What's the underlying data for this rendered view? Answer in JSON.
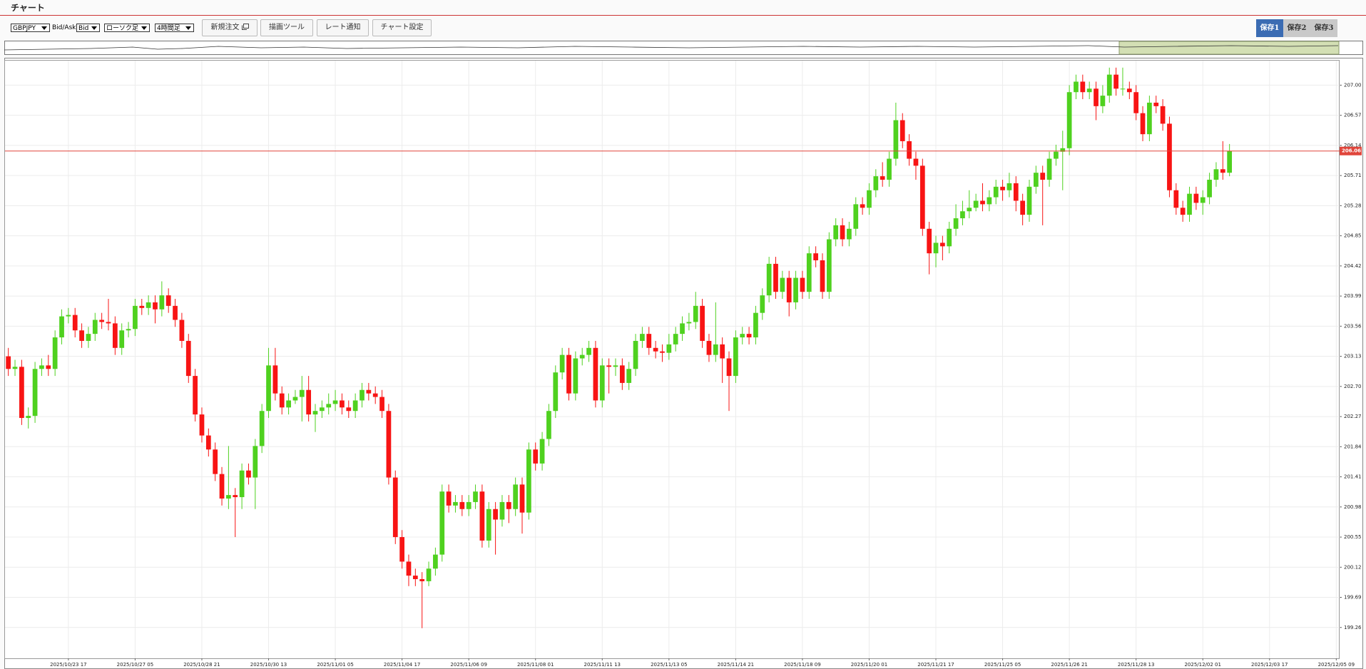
{
  "header": {
    "title": "チャート"
  },
  "toolbar": {
    "symbol": "GBPJPY",
    "bid_ask_label": "Bid/Ask",
    "price_type": "Bid",
    "chart_style": "ローソク足",
    "timeframe": "4時間足",
    "buttons": [
      "新規注文",
      "描画ツール",
      "レート通知",
      "チャート設定"
    ],
    "saves": [
      "保存1",
      "保存2",
      "保存3"
    ]
  },
  "chart_data": {
    "type": "candlestick",
    "categories": [
      null,
      null,
      null,
      null,
      null,
      null,
      null,
      null,
      null,
      "2025/10/23 17",
      null,
      null,
      null,
      null,
      null,
      null,
      null,
      null,
      null,
      "2025/10/27 05",
      null,
      null,
      null,
      null,
      null,
      null,
      null,
      null,
      null,
      "2025/10/28 21",
      null,
      null,
      null,
      null,
      null,
      null,
      null,
      null,
      null,
      "2025/10/30 13",
      null,
      null,
      null,
      null,
      null,
      null,
      null,
      null,
      null,
      "2025/11/01 05",
      null,
      null,
      null,
      null,
      null,
      null,
      null,
      null,
      null,
      "2025/11/04 17",
      null,
      null,
      null,
      null,
      null,
      null,
      null,
      null,
      null,
      "2025/11/06 09",
      null,
      null,
      null,
      null,
      null,
      null,
      null,
      null,
      null,
      "2025/11/08 01",
      null,
      null,
      null,
      null,
      null,
      null,
      null,
      null,
      null,
      "2025/11/11 13",
      null,
      null,
      null,
      null,
      null,
      null,
      null,
      null,
      null,
      "2025/11/13 05",
      null,
      null,
      null,
      null,
      null,
      null,
      null,
      null,
      null,
      "2025/11/14 21",
      null,
      null,
      null,
      null,
      null,
      null,
      null,
      null,
      null,
      "2025/11/18 09",
      null,
      null,
      null,
      null,
      null,
      null,
      null,
      null,
      null,
      "2025/11/20 01",
      null,
      null,
      null,
      null,
      null,
      null,
      null,
      null,
      null,
      "2025/11/21 17",
      null,
      null,
      null,
      null,
      null,
      null,
      null,
      null,
      null,
      "2025/11/25 05",
      null,
      null,
      null,
      null,
      null,
      null,
      null,
      null,
      null,
      "2025/11/26 21",
      null,
      null,
      null,
      null,
      null,
      null,
      null,
      null,
      null,
      "2025/11/28 13",
      null,
      null,
      null,
      null,
      null,
      null,
      null,
      null,
      null,
      "2025/12/02 01",
      null,
      null,
      null,
      null,
      null,
      null,
      null,
      null,
      null,
      "2025/12/03 17",
      null,
      null,
      null,
      null,
      null,
      null,
      null,
      null,
      null,
      "2025/12/05 09"
    ],
    "candles": [
      [
        203.13,
        203.25,
        202.85,
        202.95
      ],
      [
        202.95,
        203.08,
        202.85,
        202.98
      ],
      [
        202.98,
        203.08,
        202.15,
        202.25
      ],
      [
        202.25,
        202.4,
        202.1,
        202.28
      ],
      [
        202.28,
        203.05,
        202.18,
        202.95
      ],
      [
        202.95,
        203.1,
        202.85,
        203.0
      ],
      [
        203.0,
        203.15,
        202.85,
        202.95
      ],
      [
        202.95,
        203.5,
        202.85,
        203.4
      ],
      [
        203.4,
        203.8,
        203.3,
        203.7
      ],
      [
        203.7,
        203.82,
        203.6,
        203.72
      ],
      [
        203.72,
        203.82,
        203.4,
        203.5
      ],
      [
        203.5,
        203.6,
        203.25,
        203.35
      ],
      [
        203.35,
        203.55,
        203.25,
        203.45
      ],
      [
        203.45,
        203.75,
        203.35,
        203.65
      ],
      [
        203.65,
        203.75,
        203.52,
        203.62
      ],
      [
        203.62,
        203.95,
        203.5,
        203.6
      ],
      [
        203.6,
        203.7,
        203.15,
        203.25
      ],
      [
        203.25,
        203.6,
        203.15,
        203.5
      ],
      [
        203.5,
        203.62,
        203.4,
        203.52
      ],
      [
        203.52,
        203.95,
        203.42,
        203.85
      ],
      [
        203.85,
        203.95,
        203.72,
        203.82
      ],
      [
        203.82,
        204.0,
        203.72,
        203.9
      ],
      [
        203.9,
        204.0,
        203.6,
        203.8
      ],
      [
        203.8,
        204.2,
        203.7,
        204.0
      ],
      [
        204.0,
        204.1,
        203.75,
        203.85
      ],
      [
        203.85,
        203.95,
        203.55,
        203.65
      ],
      [
        203.65,
        203.75,
        203.25,
        203.35
      ],
      [
        203.35,
        203.45,
        202.75,
        202.85
      ],
      [
        202.85,
        202.95,
        202.2,
        202.3
      ],
      [
        202.3,
        202.4,
        201.9,
        202.0
      ],
      [
        202.0,
        202.1,
        201.7,
        201.8
      ],
      [
        201.8,
        201.9,
        201.35,
        201.45
      ],
      [
        201.45,
        201.55,
        201.0,
        201.1
      ],
      [
        201.1,
        201.85,
        200.95,
        201.15
      ],
      [
        201.15,
        201.25,
        200.55,
        201.12
      ],
      [
        201.12,
        201.6,
        200.95,
        201.5
      ],
      [
        201.5,
        201.6,
        201.3,
        201.4
      ],
      [
        201.4,
        201.95,
        200.95,
        201.85
      ],
      [
        201.85,
        202.45,
        201.75,
        202.35
      ],
      [
        202.35,
        203.25,
        202.25,
        203.0
      ],
      [
        203.0,
        203.25,
        202.5,
        202.6
      ],
      [
        202.6,
        202.7,
        202.3,
        202.4
      ],
      [
        202.4,
        202.6,
        202.3,
        202.5
      ],
      [
        202.5,
        202.65,
        202.45,
        202.55
      ],
      [
        202.55,
        202.85,
        202.2,
        202.65
      ],
      [
        202.65,
        202.85,
        202.2,
        202.3
      ],
      [
        202.3,
        202.45,
        202.05,
        202.35
      ],
      [
        202.35,
        202.5,
        202.25,
        202.4
      ],
      [
        202.4,
        202.6,
        202.3,
        202.45
      ],
      [
        202.45,
        202.65,
        202.35,
        202.5
      ],
      [
        202.5,
        202.6,
        202.3,
        202.4
      ],
      [
        202.4,
        202.5,
        202.25,
        202.35
      ],
      [
        202.35,
        202.6,
        202.25,
        202.5
      ],
      [
        202.5,
        202.75,
        202.4,
        202.65
      ],
      [
        202.65,
        202.75,
        202.5,
        202.6
      ],
      [
        202.6,
        202.7,
        202.45,
        202.55
      ],
      [
        202.55,
        202.65,
        202.25,
        202.35
      ],
      [
        202.35,
        202.45,
        201.3,
        201.4
      ],
      [
        201.4,
        201.5,
        200.45,
        200.55
      ],
      [
        200.55,
        200.65,
        200.1,
        200.2
      ],
      [
        200.2,
        200.3,
        199.85,
        200.0
      ],
      [
        200.0,
        200.1,
        199.85,
        199.95
      ],
      [
        199.95,
        200.05,
        199.25,
        199.92
      ],
      [
        199.92,
        200.2,
        199.85,
        200.1
      ],
      [
        200.1,
        200.4,
        200.0,
        200.3
      ],
      [
        200.3,
        201.3,
        200.2,
        201.2
      ],
      [
        201.2,
        201.3,
        200.9,
        201.0
      ],
      [
        201.0,
        201.15,
        200.9,
        201.05
      ],
      [
        201.05,
        201.15,
        200.85,
        200.95
      ],
      [
        200.95,
        201.15,
        200.85,
        201.05
      ],
      [
        201.05,
        201.3,
        200.95,
        201.2
      ],
      [
        201.2,
        201.3,
        200.4,
        200.5
      ],
      [
        200.5,
        201.05,
        200.4,
        200.95
      ],
      [
        200.95,
        201.05,
        200.3,
        200.8
      ],
      [
        200.8,
        201.15,
        200.7,
        201.05
      ],
      [
        201.05,
        201.15,
        200.75,
        200.95
      ],
      [
        200.95,
        201.4,
        200.85,
        201.3
      ],
      [
        201.3,
        201.4,
        200.6,
        200.9
      ],
      [
        200.9,
        201.9,
        200.8,
        201.8
      ],
      [
        201.8,
        201.9,
        201.5,
        201.6
      ],
      [
        201.6,
        202.05,
        201.5,
        201.95
      ],
      [
        201.95,
        202.45,
        201.85,
        202.35
      ],
      [
        202.35,
        203.0,
        202.25,
        202.9
      ],
      [
        202.9,
        203.25,
        202.8,
        203.15
      ],
      [
        203.15,
        203.25,
        202.5,
        202.6
      ],
      [
        202.6,
        203.2,
        202.5,
        203.1
      ],
      [
        203.1,
        203.25,
        203.0,
        203.15
      ],
      [
        203.15,
        203.35,
        203.05,
        203.25
      ],
      [
        203.25,
        203.35,
        202.4,
        202.5
      ],
      [
        202.5,
        203.1,
        202.4,
        203.0
      ],
      [
        203.0,
        203.1,
        202.6,
        202.98
      ],
      [
        202.98,
        203.1,
        202.85,
        203.0
      ],
      [
        203.0,
        203.1,
        202.65,
        202.75
      ],
      [
        202.75,
        203.05,
        202.65,
        202.95
      ],
      [
        202.95,
        203.45,
        202.85,
        203.35
      ],
      [
        203.35,
        203.55,
        203.25,
        203.45
      ],
      [
        203.45,
        203.55,
        203.15,
        203.25
      ],
      [
        203.25,
        203.35,
        203.1,
        203.2
      ],
      [
        203.2,
        203.3,
        203.05,
        203.18
      ],
      [
        203.18,
        203.45,
        203.08,
        203.3
      ],
      [
        203.3,
        203.55,
        203.2,
        203.45
      ],
      [
        203.45,
        203.7,
        203.35,
        203.6
      ],
      [
        203.6,
        203.75,
        203.5,
        203.62
      ],
      [
        203.62,
        204.05,
        203.52,
        203.85
      ],
      [
        203.85,
        203.95,
        203.25,
        203.35
      ],
      [
        203.35,
        203.45,
        203.05,
        203.15
      ],
      [
        203.15,
        203.9,
        203.05,
        203.3
      ],
      [
        203.3,
        203.4,
        202.75,
        203.1
      ],
      [
        203.1,
        203.2,
        202.35,
        202.85
      ],
      [
        202.85,
        203.5,
        202.75,
        203.4
      ],
      [
        203.4,
        203.55,
        203.3,
        203.45
      ],
      [
        203.45,
        203.55,
        203.3,
        203.4
      ],
      [
        203.4,
        203.85,
        203.3,
        203.75
      ],
      [
        203.75,
        204.1,
        203.65,
        204.0
      ],
      [
        204.0,
        204.55,
        203.9,
        204.45
      ],
      [
        204.45,
        204.55,
        203.95,
        204.05
      ],
      [
        204.05,
        204.35,
        203.95,
        204.25
      ],
      [
        204.25,
        204.35,
        203.7,
        203.9
      ],
      [
        203.9,
        204.35,
        203.8,
        204.25
      ],
      [
        204.25,
        204.35,
        203.95,
        204.05
      ],
      [
        204.05,
        204.7,
        203.95,
        204.6
      ],
      [
        204.6,
        204.7,
        204.4,
        204.5
      ],
      [
        204.5,
        204.6,
        203.95,
        204.05
      ],
      [
        204.05,
        204.9,
        203.95,
        204.8
      ],
      [
        204.8,
        205.1,
        204.7,
        205.0
      ],
      [
        205.0,
        205.1,
        204.7,
        204.8
      ],
      [
        204.8,
        205.05,
        204.7,
        204.95
      ],
      [
        204.95,
        205.4,
        204.85,
        205.3
      ],
      [
        205.3,
        205.4,
        205.15,
        205.25
      ],
      [
        205.25,
        205.6,
        205.15,
        205.5
      ],
      [
        205.5,
        205.8,
        205.4,
        205.7
      ],
      [
        205.7,
        205.9,
        205.55,
        205.65
      ],
      [
        205.65,
        206.05,
        205.55,
        205.95
      ],
      [
        205.95,
        206.75,
        205.85,
        206.5
      ],
      [
        206.5,
        206.6,
        206.1,
        206.2
      ],
      [
        206.2,
        206.3,
        205.85,
        205.95
      ],
      [
        205.95,
        206.05,
        205.65,
        205.85
      ],
      [
        205.85,
        205.95,
        204.85,
        204.95
      ],
      [
        204.95,
        205.05,
        204.3,
        204.6
      ],
      [
        204.6,
        204.85,
        204.4,
        204.75
      ],
      [
        204.75,
        204.85,
        204.5,
        204.7
      ],
      [
        204.7,
        205.05,
        204.6,
        204.95
      ],
      [
        204.95,
        205.3,
        204.85,
        205.1
      ],
      [
        205.1,
        205.35,
        205.0,
        205.2
      ],
      [
        205.2,
        205.5,
        205.1,
        205.25
      ],
      [
        205.25,
        205.45,
        205.2,
        205.35
      ],
      [
        205.35,
        205.6,
        205.2,
        205.3
      ],
      [
        205.3,
        205.5,
        205.2,
        205.4
      ],
      [
        205.4,
        205.65,
        205.3,
        205.55
      ],
      [
        205.55,
        205.65,
        205.35,
        205.5
      ],
      [
        205.5,
        205.75,
        205.4,
        205.6
      ],
      [
        205.6,
        205.7,
        205.2,
        205.35
      ],
      [
        205.35,
        205.45,
        205.0,
        205.15
      ],
      [
        205.15,
        205.65,
        205.05,
        205.55
      ],
      [
        205.55,
        205.85,
        205.45,
        205.75
      ],
      [
        205.75,
        205.85,
        205.0,
        205.65
      ],
      [
        205.65,
        206.05,
        205.55,
        205.95
      ],
      [
        205.95,
        206.15,
        205.85,
        206.05
      ],
      [
        206.05,
        206.35,
        205.5,
        206.1
      ],
      [
        206.1,
        207.0,
        206.0,
        206.9
      ],
      [
        206.9,
        207.15,
        206.8,
        207.05
      ],
      [
        207.05,
        207.15,
        206.8,
        206.9
      ],
      [
        206.9,
        207.05,
        206.8,
        206.95
      ],
      [
        206.95,
        207.05,
        206.5,
        206.7
      ],
      [
        206.7,
        207.0,
        206.6,
        206.85
      ],
      [
        206.85,
        207.25,
        206.75,
        207.15
      ],
      [
        207.15,
        207.25,
        206.85,
        206.95
      ],
      [
        206.95,
        207.25,
        206.85,
        206.95
      ],
      [
        206.95,
        207.05,
        206.8,
        206.9
      ],
      [
        206.9,
        207.0,
        206.5,
        206.6
      ],
      [
        206.6,
        206.7,
        206.2,
        206.3
      ],
      [
        206.3,
        206.85,
        206.2,
        206.75
      ],
      [
        206.75,
        206.85,
        206.6,
        206.7
      ],
      [
        206.7,
        206.8,
        206.35,
        206.45
      ],
      [
        206.45,
        206.55,
        205.4,
        205.5
      ],
      [
        205.5,
        205.6,
        205.15,
        205.25
      ],
      [
        205.25,
        205.35,
        205.05,
        205.15
      ],
      [
        205.15,
        205.55,
        205.05,
        205.45
      ],
      [
        205.45,
        205.55,
        205.22,
        205.32
      ],
      [
        205.32,
        205.5,
        205.15,
        205.4
      ],
      [
        205.4,
        205.75,
        205.3,
        205.65
      ],
      [
        205.65,
        205.9,
        205.55,
        205.8
      ],
      [
        205.8,
        206.2,
        205.65,
        205.75
      ],
      [
        205.75,
        206.16,
        205.7,
        206.06
      ],
      null,
      null,
      null,
      null,
      null,
      null,
      null,
      null,
      null,
      null,
      null,
      null,
      null,
      null,
      null,
      null
    ],
    "up_color": "#4fd11f",
    "down_color": "#f81414",
    "ylim": [
      198.82,
      207.35
    ],
    "yticks": [
      199.26,
      199.69,
      200.12,
      200.55,
      200.98,
      201.41,
      201.84,
      202.27,
      {
        "value": 202.7,
        "label": "202.70"
      },
      203.13,
      203.56,
      203.99,
      204.42,
      204.85,
      205.28,
      205.71,
      206.14,
      206.57,
      {
        "value": 207,
        "label": "207.00"
      }
    ],
    "current_price": 206.06,
    "current_color": "#e0453b",
    "grid": true
  }
}
